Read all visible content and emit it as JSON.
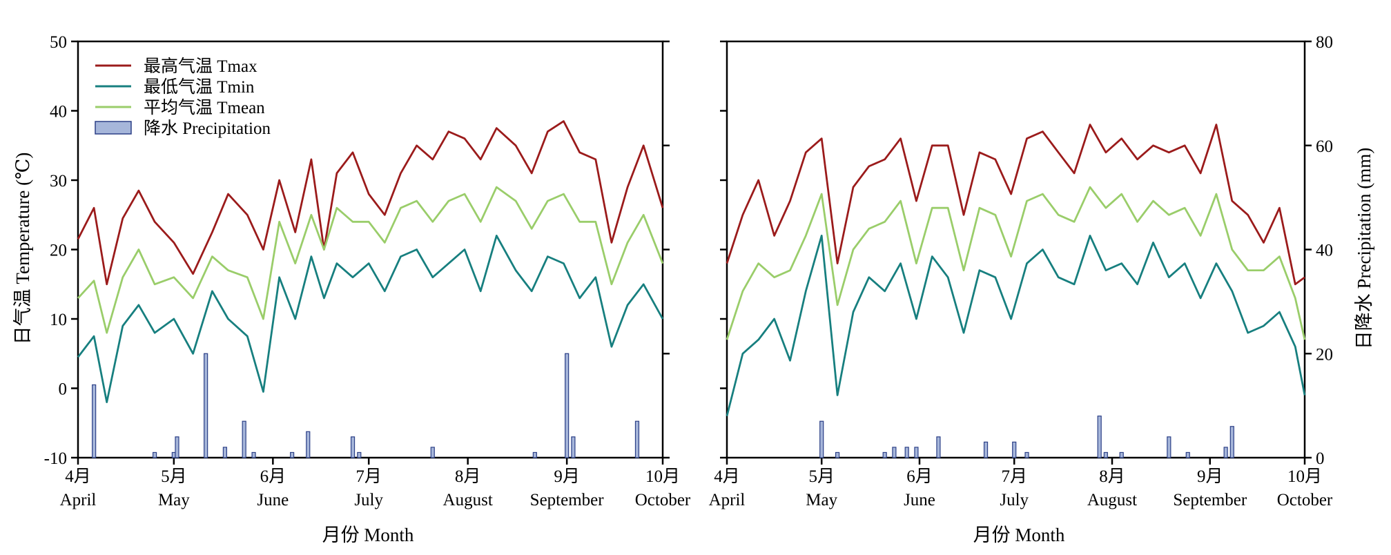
{
  "colors": {
    "tmax": "#9B1B1B",
    "tmin": "#177F7F",
    "tmean": "#9ACD6A",
    "precip_fill": "#A6B6DA",
    "precip_stroke": "#2B3F86"
  },
  "legend": {
    "tmax": "最高气温 Tmax",
    "tmin": "最低气温 Tmin",
    "tmean": "平均气温 Tmean",
    "precip": "降水 Precipitation"
  },
  "axes": {
    "ylabel_left": "日气温 Temperature (℃)",
    "ylabel_right": "日降水 Precipitation (mm)",
    "xlabel": "月份 Month",
    "month_cn": [
      "4月",
      "5月",
      "6月",
      "7月",
      "8月",
      "9月",
      "10月"
    ],
    "month_en": [
      "April",
      "May",
      "June",
      "July",
      "August",
      "September",
      "October"
    ],
    "temp_ticks": [
      "50",
      "40",
      "30",
      "20",
      "10",
      "0",
      "-10"
    ],
    "precip_ticks": [
      "80",
      "60",
      "40",
      "20",
      "0"
    ]
  },
  "chart_data": [
    {
      "type": "line",
      "panel": "left",
      "x_unit": "day (Apr 1 – Oct 1)",
      "ylabel": "日气温 Temperature (℃)",
      "xlabel": "月份 Month",
      "ylim": [
        -10,
        50
      ],
      "y2lim": [
        0,
        80
      ],
      "categories_cn": [
        "4月",
        "5月",
        "6月",
        "7月",
        "8月",
        "9月",
        "10月"
      ],
      "categories_en": [
        "April",
        "May",
        "June",
        "July",
        "August",
        "September",
        "October"
      ],
      "series": [
        {
          "name": "最高气温 Tmax",
          "x": [
            0,
            5,
            9,
            14,
            19,
            24,
            30,
            36,
            42,
            47,
            53,
            58,
            63,
            68,
            73,
            77,
            81,
            86,
            91,
            96,
            101,
            106,
            111,
            116,
            121,
            126,
            131,
            137,
            142,
            147,
            152,
            157,
            162,
            167,
            172,
            177,
            183
          ],
          "values": [
            21.5,
            26,
            15,
            24.5,
            28.5,
            24,
            21,
            16.5,
            22.5,
            28,
            25,
            20,
            30,
            22.5,
            33,
            20,
            31,
            34,
            28,
            25,
            31,
            35,
            33,
            37,
            36,
            33,
            37.5,
            35,
            31,
            37,
            38.5,
            34,
            33,
            21,
            29,
            35,
            26
          ]
        },
        {
          "name": "最低气温 Tmin",
          "x": [
            0,
            5,
            9,
            14,
            19,
            24,
            30,
            36,
            42,
            47,
            53,
            58,
            63,
            68,
            73,
            77,
            81,
            86,
            91,
            96,
            101,
            106,
            111,
            116,
            121,
            126,
            131,
            137,
            142,
            147,
            152,
            157,
            162,
            167,
            172,
            177,
            183
          ],
          "values": [
            4.5,
            7.5,
            -2,
            9,
            12,
            8,
            10,
            5,
            14,
            10,
            7.5,
            -0.5,
            16,
            10,
            19,
            13,
            18,
            16,
            18,
            14,
            19,
            20,
            16,
            18,
            20,
            14,
            22,
            17,
            14,
            19,
            18,
            13,
            16,
            6,
            12,
            15,
            10
          ]
        },
        {
          "name": "平均气温 Tmean",
          "x": [
            0,
            5,
            9,
            14,
            19,
            24,
            30,
            36,
            42,
            47,
            53,
            58,
            63,
            68,
            73,
            77,
            81,
            86,
            91,
            96,
            101,
            106,
            111,
            116,
            121,
            126,
            131,
            137,
            142,
            147,
            152,
            157,
            162,
            167,
            172,
            177,
            183
          ],
          "values": [
            13,
            15.5,
            8,
            16,
            20,
            15,
            16,
            13,
            19,
            17,
            16,
            10,
            24,
            18,
            25,
            20,
            26,
            24,
            24,
            21,
            26,
            27,
            24,
            27,
            28,
            24,
            29,
            27,
            23,
            27,
            28,
            24,
            24,
            15,
            21,
            25,
            18
          ]
        },
        {
          "name": "降水 Precipitation",
          "x": [
            5,
            24,
            30,
            31,
            40,
            46,
            52,
            55,
            67,
            72,
            86,
            88,
            111,
            143,
            153,
            155,
            175
          ],
          "values": [
            14,
            1,
            1,
            4,
            20,
            2,
            7,
            1,
            1,
            5,
            4,
            1,
            2,
            1,
            20,
            4,
            7
          ]
        }
      ]
    },
    {
      "type": "line",
      "panel": "right",
      "x_unit": "day (Apr 1 – Oct 1)",
      "ylabel": "日降水 Precipitation (mm)",
      "xlabel": "月份 Month",
      "ylim": [
        -10,
        50
      ],
      "y2lim": [
        0,
        80
      ],
      "categories_cn": [
        "4月",
        "5月",
        "6月",
        "7月",
        "8月",
        "9月",
        "10月"
      ],
      "categories_en": [
        "April",
        "May",
        "June",
        "July",
        "August",
        "September",
        "October"
      ],
      "series": [
        {
          "name": "最高气温 Tmax",
          "x": [
            0,
            5,
            10,
            15,
            20,
            25,
            30,
            35,
            40,
            45,
            50,
            55,
            60,
            65,
            70,
            75,
            80,
            85,
            90,
            95,
            100,
            105,
            110,
            115,
            120,
            125,
            130,
            135,
            140,
            145,
            150,
            155,
            160,
            165,
            170,
            175,
            180,
            183
          ],
          "values": [
            18,
            25,
            30,
            22,
            27,
            34,
            36,
            18,
            29,
            32,
            33,
            36,
            27,
            35,
            35,
            25,
            34,
            33,
            28,
            36,
            37,
            34,
            31,
            38,
            34,
            36,
            33,
            35,
            34,
            35,
            31,
            38,
            27,
            25,
            21,
            26,
            15,
            16
          ]
        },
        {
          "name": "最低气温 Tmin",
          "x": [
            0,
            5,
            10,
            15,
            20,
            25,
            30,
            35,
            40,
            45,
            50,
            55,
            60,
            65,
            70,
            75,
            80,
            85,
            90,
            95,
            100,
            105,
            110,
            115,
            120,
            125,
            130,
            135,
            140,
            145,
            150,
            155,
            160,
            165,
            170,
            175,
            180,
            183
          ],
          "values": [
            -4,
            5,
            7,
            10,
            4,
            14,
            22,
            -1,
            11,
            16,
            14,
            18,
            10,
            19,
            16,
            8,
            17,
            16,
            10,
            18,
            20,
            16,
            15,
            22,
            17,
            18,
            15,
            21,
            16,
            18,
            13,
            18,
            14,
            8,
            9,
            11,
            6,
            -1
          ]
        },
        {
          "name": "平均气温 Tmean",
          "x": [
            0,
            5,
            10,
            15,
            20,
            25,
            30,
            35,
            40,
            45,
            50,
            55,
            60,
            65,
            70,
            75,
            80,
            85,
            90,
            95,
            100,
            105,
            110,
            115,
            120,
            125,
            130,
            135,
            140,
            145,
            150,
            155,
            160,
            165,
            170,
            175,
            180,
            183
          ],
          "values": [
            7,
            14,
            18,
            16,
            17,
            22,
            28,
            12,
            20,
            23,
            24,
            27,
            18,
            26,
            26,
            17,
            26,
            25,
            19,
            27,
            28,
            25,
            24,
            29,
            26,
            28,
            24,
            27,
            25,
            26,
            22,
            28,
            20,
            17,
            17,
            19,
            13,
            7
          ]
        },
        {
          "name": "降水 Precipitation",
          "x": [
            30,
            35,
            50,
            53,
            57,
            60,
            67,
            82,
            91,
            95,
            118,
            120,
            125,
            140,
            146,
            158,
            160
          ],
          "values": [
            7,
            1,
            1,
            2,
            2,
            2,
            4,
            3,
            3,
            1,
            8,
            1,
            1,
            4,
            1,
            2,
            6
          ]
        }
      ]
    }
  ]
}
